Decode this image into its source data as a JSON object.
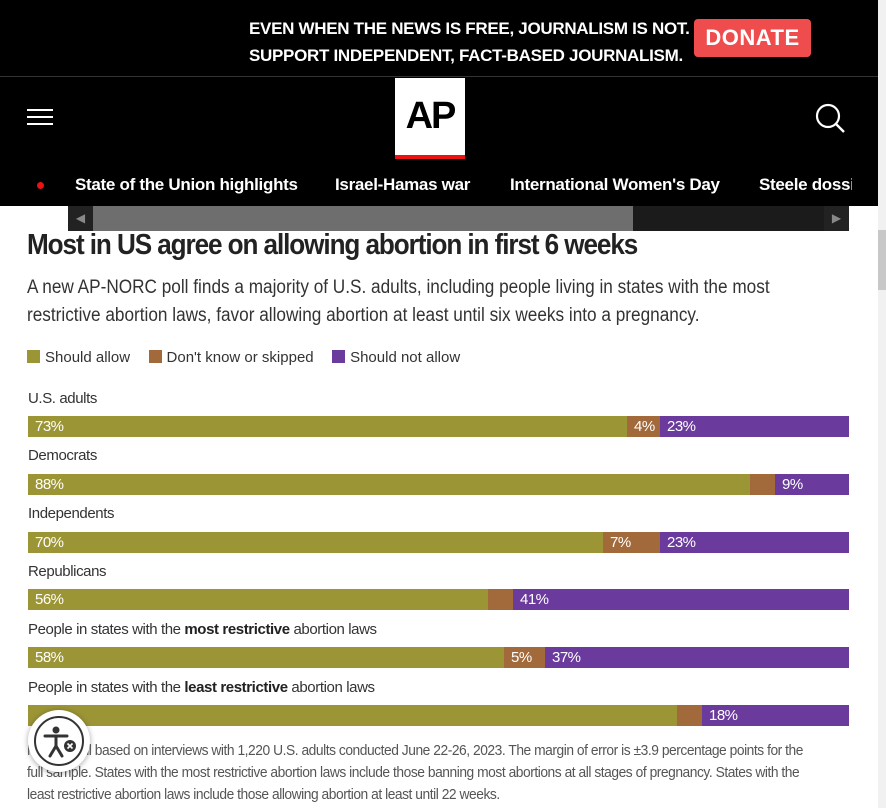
{
  "banner": {
    "line1": "EVEN WHEN THE NEWS IS FREE, JOURNALISM IS NOT.",
    "line2": "SUPPORT INDEPENDENT, FACT-BASED JOURNALISM.",
    "donate_label": "DONATE"
  },
  "header": {
    "logo_text": "AP",
    "menu_icon": "hamburger-menu-icon",
    "search_icon": "search-icon"
  },
  "nav": {
    "items": [
      "State of the Union highlights",
      "Israel-Hamas war",
      "International Women's Day",
      "Steele dossier"
    ]
  },
  "graphic": {
    "title": "Most in US agree on allowing abortion in first 6 weeks",
    "subtitle": "A new AP-NORC poll finds a majority of U.S. adults, including people living in states with the most restrictive abortion laws, favor allowing abortion at least until six weeks into a pregnancy.",
    "legend": [
      {
        "label": "Should allow",
        "color": "#9c9536"
      },
      {
        "label": "Don't know or skipped",
        "color": "#a2693a"
      },
      {
        "label": "Should not allow",
        "color": "#6a3b9c"
      }
    ],
    "footnote": "NOTE: Poll based on interviews with 1,220 U.S. adults conducted June 22-26, 2023. The margin of error is ±3.9 percentage points for the full sample. States with the most restrictive abortion laws include those banning most abortions at all stages of pregnancy. States with the least restrictive abortion laws include those allowing abortion at least until 22 weeks."
  },
  "chart_data": {
    "type": "bar",
    "stacked": true,
    "orientation": "horizontal",
    "categories": [
      "U.S. adults",
      "Democrats",
      "Independents",
      "Republicans",
      "People in states with the most restrictive abortion laws",
      "People in states with the least restrictive abortion laws"
    ],
    "series": [
      {
        "name": "Should allow",
        "values": [
          73,
          88,
          70,
          56,
          58,
          79
        ],
        "labels": [
          "73%",
          "88%",
          "70%",
          "56%",
          "58%",
          ""
        ]
      },
      {
        "name": "Don't know or skipped",
        "values": [
          4,
          3,
          7,
          3,
          5,
          3
        ],
        "labels": [
          "4%",
          "",
          "7%",
          "",
          "5%",
          ""
        ]
      },
      {
        "name": "Should not allow",
        "values": [
          23,
          9,
          23,
          41,
          37,
          18
        ],
        "labels": [
          "23%",
          "9%",
          "23%",
          "41%",
          "37%",
          "18%"
        ]
      }
    ]
  },
  "row_labels": {
    "r0": "U.S. adults",
    "r1": "Democrats",
    "r2": "Independents",
    "r3": "Republicans",
    "r4_pre": "People in states with the ",
    "r4_bold": "most restrictive",
    "r4_post": " abortion laws",
    "r5_pre": "People in states with the ",
    "r5_bold": "least restrictive",
    "r5_post": " abortion laws"
  },
  "accessibility": {
    "icon": "accessibility-icon"
  }
}
